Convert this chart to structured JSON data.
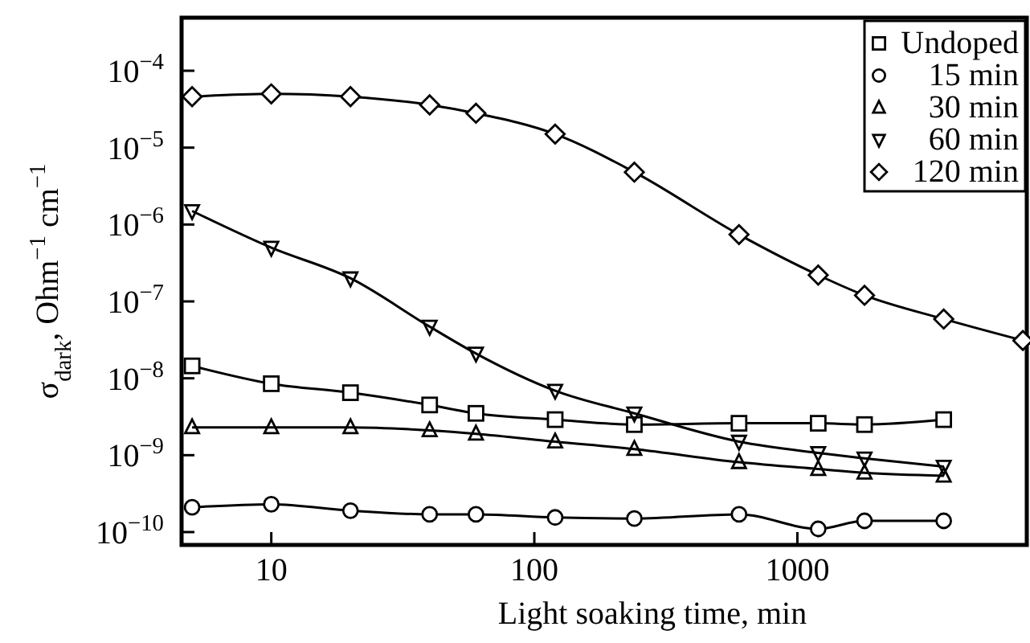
{
  "chart_data": {
    "type": "line",
    "xlabel": "Light soaking time, min",
    "ylabel": "σ$_{dark}$, Ohm$^{−1}$ cm$^{−1}$",
    "log": "xy",
    "grid": false,
    "legend": "top right",
    "line_style": "solid",
    "xlim": [
      4.56,
      7450
    ],
    "ylim": [
      6.8e-11,
      0.00049
    ],
    "xticks": [
      10,
      100,
      1000
    ],
    "yticks": [
      {
        "value": 1e-10,
        "label": "10$^{−10}$"
      },
      {
        "value": 1e-09,
        "label": "10$^{−9}$"
      },
      {
        "value": 1e-08,
        "label": "10$^{−8}$"
      },
      {
        "value": 1e-07,
        "label": "10$^{−7}$"
      },
      {
        "value": 1e-06,
        "label": "10$^{−6}$"
      },
      {
        "value": 1e-05,
        "label": "10$^{−5}$"
      },
      {
        "value": 0.0001,
        "label": "10$^{−4}$"
      }
    ],
    "series": [
      {
        "name": "Undoped",
        "color": "#000000",
        "marker": "square",
        "x": [
          5,
          10,
          20,
          40,
          60,
          120,
          240,
          600,
          1200,
          1800,
          3600
        ],
        "values": [
          1.45e-08,
          8.5e-09,
          6.5e-09,
          4.5e-09,
          3.5e-09,
          2.9e-09,
          2.5e-09,
          2.6e-09,
          2.6e-09,
          2.5e-09,
          2.9e-09
        ]
      },
      {
        "name": "15 min",
        "color": "#000000",
        "marker": "circle",
        "x": [
          5,
          10,
          20,
          40,
          60,
          120,
          240,
          600,
          1200,
          1800,
          3600
        ],
        "values": [
          2.1e-10,
          2.3e-10,
          1.9e-10,
          1.7e-10,
          1.7e-10,
          1.55e-10,
          1.5e-10,
          1.7e-10,
          1.1e-10,
          1.4e-10,
          1.4e-10
        ]
      },
      {
        "name": "30 min",
        "color": "#000000",
        "marker": "triangle",
        "x": [
          5,
          10,
          20,
          40,
          60,
          120,
          240,
          600,
          1200,
          1800,
          3600
        ],
        "values": [
          2.3e-09,
          2.3e-09,
          2.3e-09,
          2.1e-09,
          1.9e-09,
          1.5e-09,
          1.2e-09,
          8.1e-10,
          6.6e-10,
          5.9e-10,
          5.4e-10
        ]
      },
      {
        "name": "60 min",
        "color": "#000000",
        "marker": "triangle-down",
        "x": [
          5,
          10,
          20,
          40,
          60,
          120,
          240,
          600,
          1200,
          1800,
          3600
        ],
        "values": [
          1.5e-06,
          5e-07,
          2e-07,
          4.7e-08,
          2.1e-08,
          6.9e-09,
          3.5e-09,
          1.5e-09,
          1.07e-09,
          9.1e-10,
          7.1e-10
        ]
      },
      {
        "name": "120 min",
        "color": "#000000",
        "marker": "diamond",
        "x": [
          5,
          10,
          20,
          40,
          60,
          120,
          240,
          600,
          1200,
          1800,
          3600,
          7200
        ],
        "values": [
          4.6e-05,
          5e-05,
          4.6e-05,
          3.6e-05,
          2.8e-05,
          1.5e-05,
          4.8e-06,
          7.4e-07,
          2.2e-07,
          1.2e-07,
          5.9e-08,
          3.1e-08
        ]
      }
    ]
  }
}
